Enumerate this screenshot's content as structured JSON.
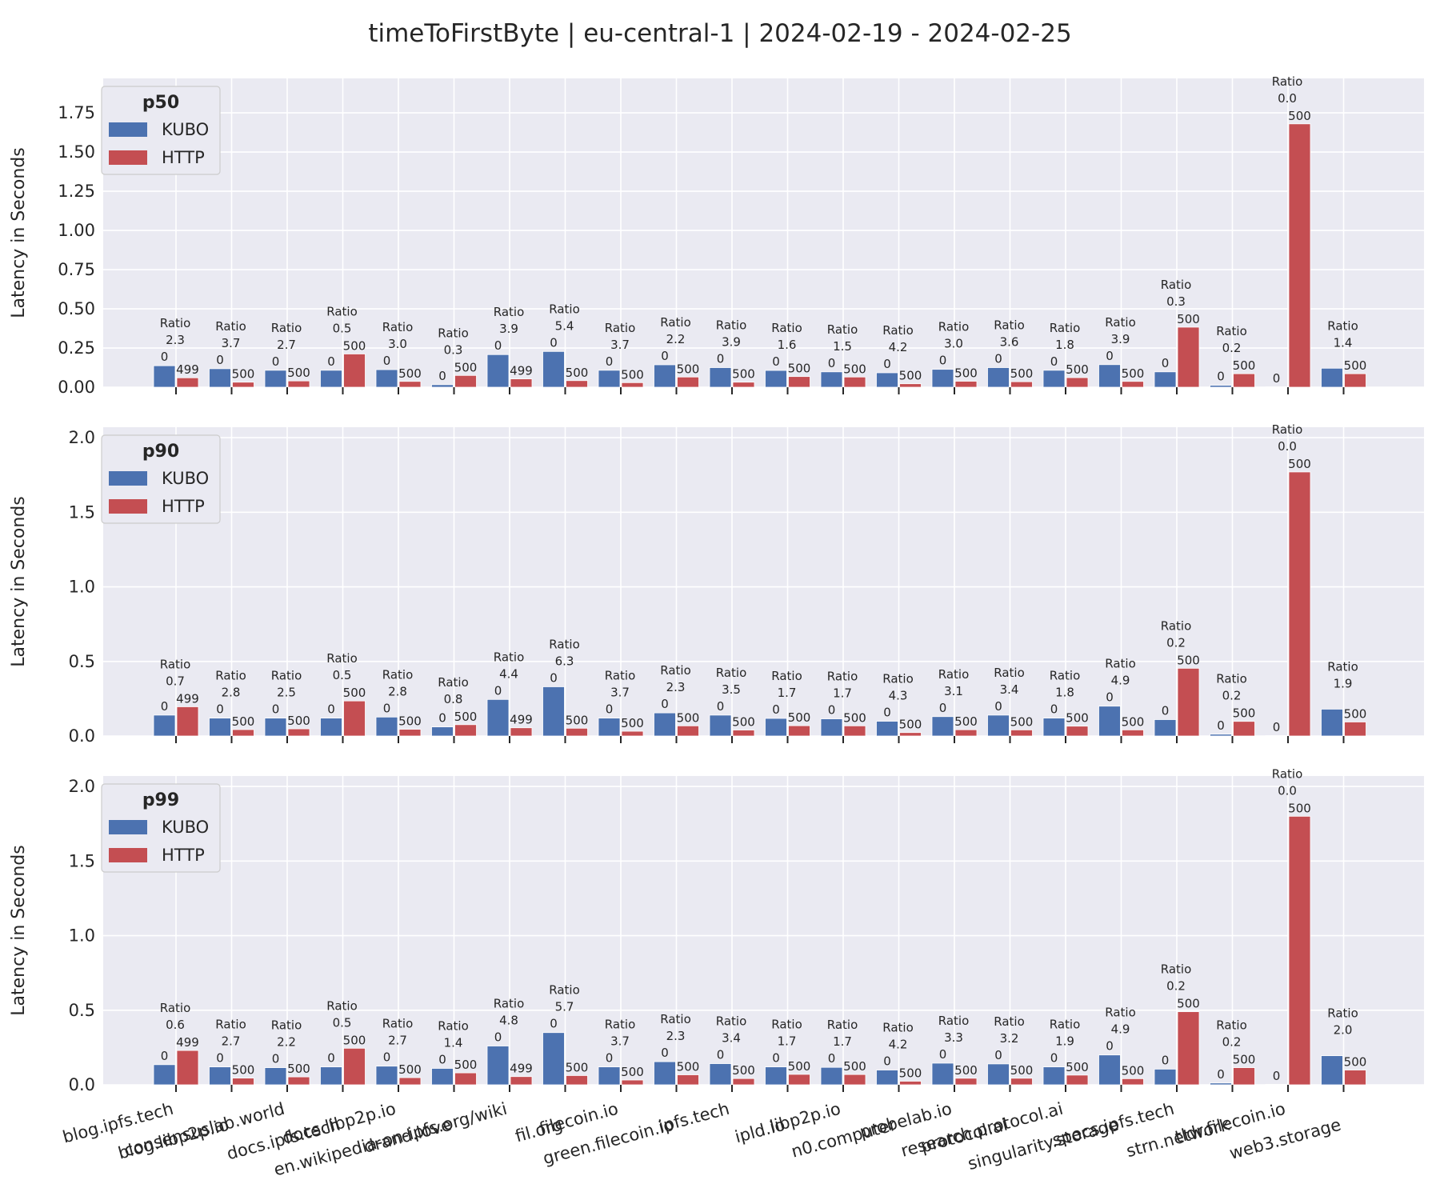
{
  "chart_data": {
    "type": "bar",
    "title": "timeToFirstByte | eu-central-1 | 2024-02-19 - 2024-02-25",
    "ylabel": "Latency in Seconds",
    "categories": [
      "blog.ipfs.tech",
      "blog.libp2p.io",
      "consensuslab.world",
      "docs.ipfs.tech",
      "docs.libp2p.io",
      "drand.love",
      "en.wikipedia-on-ipfs.org/wiki",
      "fil.org",
      "filecoin.io",
      "green.filecoin.io",
      "ipfs.tech",
      "ipld.io",
      "libp2p.io",
      "n0.computer",
      "probelab.io",
      "protocol.ai",
      "research.protocol.ai",
      "singularity.storage",
      "specs.ipfs.tech",
      "strn.network",
      "tldr.filecoin.io",
      "web3.storage"
    ],
    "ratio_word": "Ratio",
    "colors": {
      "KUBO": "#4c72b0",
      "HTTP": "#c44e52"
    },
    "panels": [
      {
        "legend_title": "p50",
        "ylim": [
          0,
          1.97
        ],
        "yticks": [
          "0.00",
          "0.25",
          "0.50",
          "0.75",
          "1.00",
          "1.25",
          "1.50",
          "1.75"
        ],
        "yticks_values": [
          0,
          0.25,
          0.5,
          0.75,
          1.0,
          1.25,
          1.5,
          1.75
        ],
        "series": [
          {
            "name": "KUBO",
            "values": [
              0.137,
              0.118,
              0.108,
              0.108,
              0.112,
              0.016,
              0.208,
              0.228,
              0.108,
              0.143,
              0.125,
              0.107,
              0.098,
              0.092,
              0.114,
              0.125,
              0.108,
              0.144,
              0.098,
              0.012,
              0.0,
              0.121
            ],
            "counts": [
              "0",
              "0",
              "0",
              "0",
              "0",
              "0",
              "0",
              "0",
              "0",
              "0",
              "0",
              "0",
              "0",
              "0",
              "0",
              "0",
              "0",
              "0",
              "0",
              "0",
              "0",
              ""
            ]
          },
          {
            "name": "HTTP",
            "values": [
              0.06,
              0.032,
              0.04,
              0.212,
              0.037,
              0.075,
              0.053,
              0.042,
              0.029,
              0.065,
              0.032,
              0.068,
              0.065,
              0.022,
              0.038,
              0.035,
              0.061,
              0.037,
              0.383,
              0.086,
              1.68,
              0.086
            ],
            "counts": [
              "499",
              "500",
              "500",
              "500",
              "500",
              "500",
              "499",
              "500",
              "500",
              "500",
              "500",
              "500",
              "500",
              "500",
              "500",
              "500",
              "500",
              "500",
              "500",
              "500",
              "500",
              "500"
            ]
          }
        ],
        "ratios": [
          "2.3",
          "3.7",
          "2.7",
          "0.5",
          "3.0",
          "0.3",
          "3.9",
          "5.4",
          "3.7",
          "2.2",
          "3.9",
          "1.6",
          "1.5",
          "4.2",
          "3.0",
          "3.6",
          "1.8",
          "3.9",
          "0.3",
          "0.2",
          "0.0",
          "1.4"
        ]
      },
      {
        "legend_title": "p90",
        "ylim": [
          0,
          2.07
        ],
        "yticks": [
          "0.0",
          "0.5",
          "1.0",
          "1.5",
          "2.0"
        ],
        "yticks_values": [
          0,
          0.5,
          1.0,
          1.5,
          2.0
        ],
        "series": [
          {
            "name": "KUBO",
            "values": [
              0.14,
              0.12,
              0.12,
              0.12,
              0.127,
              0.061,
              0.245,
              0.33,
              0.12,
              0.155,
              0.14,
              0.118,
              0.115,
              0.099,
              0.13,
              0.14,
              0.12,
              0.2,
              0.11,
              0.012,
              0.0,
              0.18
            ],
            "counts": [
              "0",
              "0",
              "0",
              "0",
              "0",
              "0",
              "0",
              "0",
              "0",
              "0",
              "0",
              "0",
              "0",
              "0",
              "0",
              "0",
              "0",
              "0",
              "0",
              "0",
              "0",
              ""
            ]
          },
          {
            "name": "HTTP",
            "values": [
              0.196,
              0.043,
              0.048,
              0.235,
              0.045,
              0.076,
              0.055,
              0.052,
              0.032,
              0.068,
              0.04,
              0.069,
              0.068,
              0.023,
              0.042,
              0.041,
              0.066,
              0.041,
              0.454,
              0.098,
              1.77,
              0.094
            ],
            "counts": [
              "499",
              "500",
              "500",
              "500",
              "500",
              "500",
              "499",
              "500",
              "500",
              "500",
              "500",
              "500",
              "500",
              "500",
              "500",
              "500",
              "500",
              "500",
              "500",
              "500",
              "500",
              "500"
            ]
          }
        ],
        "ratios": [
          "0.7",
          "2.8",
          "2.5",
          "0.5",
          "2.8",
          "0.8",
          "4.4",
          "6.3",
          "3.7",
          "2.3",
          "3.5",
          "1.7",
          "1.7",
          "4.3",
          "3.1",
          "3.4",
          "1.8",
          "4.9",
          "0.2",
          "0.2",
          "0.0",
          "1.9"
        ]
      },
      {
        "legend_title": "p99",
        "ylim": [
          0,
          2.07
        ],
        "yticks": [
          "0.0",
          "0.5",
          "1.0",
          "1.5",
          "2.0"
        ],
        "yticks_values": [
          0,
          0.5,
          1.0,
          1.5,
          2.0
        ],
        "series": [
          {
            "name": "KUBO",
            "values": [
              0.135,
              0.12,
              0.115,
              0.12,
              0.125,
              0.11,
              0.26,
              0.35,
              0.12,
              0.155,
              0.142,
              0.12,
              0.117,
              0.099,
              0.145,
              0.14,
              0.12,
              0.2,
              0.105,
              0.012,
              0.0,
              0.195
            ],
            "counts": [
              "0",
              "0",
              "0",
              "0",
              "0",
              "0",
              "0",
              "0",
              "0",
              "0",
              "0",
              "0",
              "0",
              "0",
              "0",
              "0",
              "0",
              "0",
              "0",
              "0",
              "0",
              ""
            ]
          },
          {
            "name": "HTTP",
            "values": [
              0.23,
              0.045,
              0.053,
              0.245,
              0.048,
              0.08,
              0.055,
              0.062,
              0.032,
              0.067,
              0.042,
              0.07,
              0.069,
              0.024,
              0.044,
              0.044,
              0.065,
              0.041,
              0.49,
              0.115,
              1.8,
              0.099
            ],
            "counts": [
              "499",
              "500",
              "500",
              "500",
              "500",
              "500",
              "499",
              "500",
              "500",
              "500",
              "500",
              "500",
              "500",
              "500",
              "500",
              "500",
              "500",
              "500",
              "500",
              "500",
              "500",
              "500"
            ]
          }
        ],
        "ratios": [
          "0.6",
          "2.7",
          "2.2",
          "0.5",
          "2.7",
          "1.4",
          "4.8",
          "5.7",
          "3.7",
          "2.3",
          "3.4",
          "1.7",
          "1.7",
          "4.2",
          "3.3",
          "3.2",
          "1.9",
          "4.9",
          "0.2",
          "0.2",
          "0.0",
          "2.0"
        ]
      }
    ]
  }
}
